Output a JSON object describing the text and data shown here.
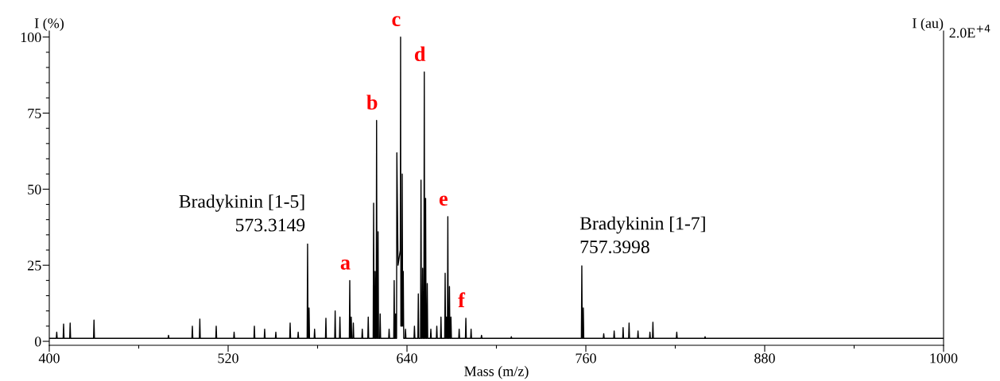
{
  "chart_data": {
    "type": "line",
    "xlabel": "Mass (m/z)",
    "ylabel": "I (%)",
    "y2label": "I (au)",
    "xlim": [
      400,
      1000
    ],
    "ylim": [
      -1.3,
      102
    ],
    "xticks": [
      400,
      {
        "value": 460,
        "label": null
      },
      520,
      {
        "value": 580,
        "label": null
      },
      640,
      {
        "value": 700,
        "label": null
      },
      760,
      {
        "value": 820,
        "label": null
      },
      880,
      {
        "value": 940,
        "label": null
      },
      1000
    ],
    "yticks": [
      0,
      {
        "value": 5,
        "label": null
      },
      {
        "value": 10,
        "label": null
      },
      {
        "value": 15,
        "label": null
      },
      {
        "value": 20,
        "label": null
      },
      25,
      {
        "value": 30,
        "label": null
      },
      {
        "value": 35,
        "label": null
      },
      {
        "value": 40,
        "label": null
      },
      {
        "value": 45,
        "label": null
      },
      50,
      {
        "value": 55,
        "label": null
      },
      {
        "value": 60,
        "label": null
      },
      {
        "value": 65,
        "label": null
      },
      {
        "value": 70,
        "label": null
      },
      75,
      {
        "value": 80,
        "label": null
      },
      {
        "value": 85,
        "label": null
      },
      {
        "value": 90,
        "label": null
      },
      {
        "value": 95,
        "label": null
      },
      100
    ],
    "grid": false,
    "marker": "none",
    "line_style": "solid",
    "series": [
      {
        "color": "#000000",
        "x": [
          400,
          404.7,
          405,
          405.3,
          409.3,
          409.6,
          409.9,
          413.7,
          414,
          414.3,
          429.7,
          430,
          430.3,
          479.7,
          480,
          480.3,
          495.7,
          496,
          496.3,
          500.7,
          501,
          501.3,
          511.7,
          512,
          512.3,
          523.7,
          524,
          524.3,
          537.3,
          537.6,
          537.9,
          544.2,
          544.5,
          544.8,
          551.7,
          552,
          552.3,
          561.3,
          561.6,
          561.9,
          566.7,
          567,
          567.3,
          573.0,
          573.3,
          573.6,
          574.0,
          574.3,
          574.6,
          577.7,
          578,
          578.3,
          585.3,
          585.6,
          585.9,
          591.5,
          591.8,
          592.1,
          594.7,
          595,
          595.3,
          601.3,
          601.6,
          601.9,
          602.3,
          602.6,
          602.9,
          603.7,
          604,
          604.3,
          609.7,
          610,
          610.3,
          613.7,
          614,
          614.3,
          617.3,
          617.6,
          617.9,
          618.3,
          618.6,
          618.9,
          619.3,
          619.6,
          619.9,
          620.3,
          620.6,
          620.9,
          621.7,
          622,
          622.3,
          627.7,
          628,
          628.3,
          631.1,
          631.4,
          631.7,
          632.1,
          632.4,
          632.7,
          633.0,
          633.2,
          634.0,
          635.5,
          635.7,
          635.9,
          636.5,
          636.8,
          637.1,
          637.5,
          637.8,
          638.7,
          639,
          639.3,
          644.7,
          645,
          645.3,
          647.3,
          647.6,
          647.9,
          649.1,
          649.4,
          649.7,
          650.2,
          650.5,
          650.8,
          651.3,
          651.6,
          651.9,
          652.2,
          652.5,
          652.8,
          653.3,
          653.6,
          653.9,
          655.7,
          656,
          656.3,
          659.7,
          660,
          660.3,
          662.5,
          662.8,
          663.1,
          665.3,
          665.6,
          665.9,
          666.2,
          666.5,
          666.8,
          667.1,
          667.4,
          667.7,
          668.2,
          668.5,
          668.8,
          669.2,
          669.5,
          669.8,
          674.7,
          675,
          675.3,
          679.2,
          679.5,
          679.8,
          682.7,
          683,
          683.3,
          689.7,
          690,
          690.3,
          709.7,
          710,
          710.3,
          757.0,
          757.3,
          757.6,
          758.0,
          758.3,
          758.6,
          771.7,
          772,
          772.3,
          778.7,
          779,
          779.3,
          784.7,
          785,
          785.3,
          788.7,
          789,
          789.3,
          794.7,
          795,
          795.3,
          802.7,
          803,
          803.3,
          804.7,
          805,
          805.3,
          820.7,
          821,
          821.3,
          839.7,
          840,
          840.3,
          1000
        ],
        "values": [
          1,
          1,
          3,
          1,
          1,
          5.7,
          1,
          1,
          6,
          1,
          1,
          7,
          1,
          1,
          2,
          1,
          1,
          5,
          1,
          1,
          7.3,
          1,
          1,
          5,
          1,
          1,
          3,
          1,
          1,
          5,
          1,
          1,
          4,
          1,
          1,
          3,
          1,
          1,
          6,
          1,
          1,
          3,
          1,
          1,
          32,
          1,
          1,
          11,
          1,
          1,
          4,
          1,
          1,
          7.6,
          1,
          1,
          10,
          1,
          1,
          8,
          1,
          1,
          20,
          1,
          1,
          8,
          1,
          1,
          6,
          1,
          1,
          4,
          1,
          1,
          8,
          1,
          1,
          45.4,
          1,
          1,
          23,
          1,
          1,
          72.6,
          1,
          1,
          36,
          1,
          1,
          9,
          1,
          1,
          4,
          1,
          1,
          20,
          1,
          1,
          9,
          1,
          1,
          62,
          25,
          30,
          100,
          5,
          5,
          55,
          5,
          23,
          1,
          1,
          4,
          1,
          1,
          5,
          1,
          1,
          15.6,
          1,
          1,
          53,
          1,
          1,
          24,
          1,
          1,
          88.5,
          1,
          1,
          47,
          1,
          1,
          19,
          1,
          1,
          4,
          1,
          1,
          5,
          1,
          1,
          8,
          1,
          1,
          22.4,
          1,
          1,
          8,
          1,
          1,
          41,
          1,
          1,
          18,
          1,
          1,
          8,
          1,
          1,
          4,
          1,
          1,
          7.6,
          1,
          1,
          4,
          1,
          1,
          2,
          1,
          1,
          1.5,
          1,
          1,
          24.8,
          1,
          1,
          11,
          1,
          1,
          2.5,
          1,
          1,
          3.4,
          1,
          1,
          4.5,
          1,
          1,
          6,
          1,
          1,
          3.4,
          1,
          1,
          3,
          1,
          1,
          6.3,
          1,
          1,
          3,
          1,
          1,
          1.5,
          1,
          1
        ]
      }
    ],
    "annotations": [
      "2.0E$^{+4}$",
      {
        "text": "Bradykinin [1-5]\n573.3149",
        "x": 573.3,
        "y": 32
      },
      {
        "text": "Bradykinin [1-7]\n757.3998",
        "x": 757.3,
        "y": 24.8
      },
      {
        "text": "a",
        "x": 601.6,
        "y": 20
      },
      {
        "text": "b",
        "x": 619.6,
        "y": 72.6
      },
      {
        "text": "c",
        "x": 635.7,
        "y": 100
      },
      {
        "text": "d",
        "x": 651.6,
        "y": 88.5
      },
      {
        "text": "e",
        "x": 667.4,
        "y": 41
      },
      {
        "text": "f",
        "x": 679.5,
        "y": 7.6
      }
    ]
  }
}
